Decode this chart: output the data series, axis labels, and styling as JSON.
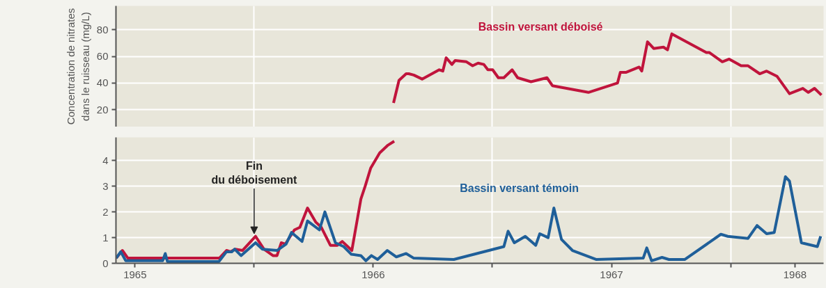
{
  "chart_data": [
    {
      "type": "line",
      "ylabel": "Concentration de nitrates\ndans le ruisseau (mg/L)",
      "xlim": [
        1965.42,
        1968.39
      ],
      "ylim": [
        7,
        98
      ],
      "xticks": [
        {
          "value": 1966,
          "label": null
        },
        {
          "value": 1967,
          "label": null
        },
        {
          "value": 1968,
          "label": null
        }
      ],
      "yticks": [
        20,
        40,
        60,
        80
      ],
      "grid": true,
      "tick_labels": "y",
      "series": [
        {
          "name": "Bassin versant déboisé",
          "color": "#c0143c",
          "x": [
            1966.585,
            1966.608,
            1966.638,
            1966.649,
            1966.67,
            1966.705,
            1966.777,
            1966.792,
            1966.806,
            1966.83,
            1966.844,
            1966.891,
            1966.917,
            1966.94,
            1966.964,
            1966.981,
            1967.001,
            1967.025,
            1967.048,
            1967.083,
            1967.106,
            1967.162,
            1967.229,
            1967.252,
            1967.403,
            1967.525,
            1967.537,
            1967.56,
            1967.616,
            1967.627,
            1967.651,
            1967.677,
            1967.718,
            1967.735,
            1967.753,
            1967.898,
            1967.91,
            1967.965,
            1967.994,
            1968.044,
            1968.073,
            1968.122,
            1968.151,
            1968.195,
            1968.247,
            1968.303,
            1968.326,
            1968.352,
            1968.381
          ],
          "values": [
            25,
            42,
            47,
            47,
            46,
            43,
            50,
            49,
            59,
            54,
            57,
            56,
            53,
            55,
            54,
            50,
            50,
            44,
            44,
            50,
            44,
            41,
            44,
            38,
            33,
            40,
            48,
            48,
            52,
            49,
            71,
            66,
            67,
            65,
            77,
            63,
            63,
            56,
            58,
            53,
            53,
            47,
            49,
            45,
            32,
            36,
            33,
            36,
            31
          ]
        }
      ]
    },
    {
      "type": "line",
      "xlim": [
        1965.42,
        1968.39
      ],
      "ylim": [
        0,
        4.9
      ],
      "xticks": [
        {
          "value": 1965.5,
          "label": "1965"
        },
        {
          "value": 1966,
          "label": null
        },
        {
          "value": 1966.5,
          "label": "1966"
        },
        {
          "value": 1967,
          "label": null
        },
        {
          "value": 1967.5,
          "label": "1967"
        },
        {
          "value": 1968,
          "label": null
        },
        {
          "value": 1968.27,
          "label": "1968"
        }
      ],
      "yticks": [
        0,
        1,
        2,
        3,
        4
      ],
      "grid": true,
      "annotations": [
        {
          "text": "Fin\ndu déboisement",
          "x": 1966.0,
          "y": 1.05
        }
      ],
      "series": [
        {
          "color": "#c0143c",
          "x": [
            1965.421,
            1965.447,
            1965.47,
            1965.854,
            1965.884,
            1965.901,
            1965.921,
            1965.951,
            1966.006,
            1966.041,
            1966.079,
            1966.096,
            1966.114,
            1966.131,
            1966.169,
            1966.192,
            1966.224,
            1966.259,
            1966.282,
            1966.32,
            1966.349,
            1966.37,
            1966.41,
            1966.448,
            1966.466,
            1966.489,
            1966.527,
            1966.562,
            1966.588
          ],
          "values": [
            0.2,
            0.5,
            0.2,
            0.2,
            0.5,
            0.45,
            0.55,
            0.5,
            1.05,
            0.55,
            0.3,
            0.3,
            0.8,
            0.75,
            1.3,
            1.4,
            2.15,
            1.6,
            1.4,
            0.7,
            0.7,
            0.85,
            0.5,
            2.5,
            3.0,
            3.7,
            4.3,
            4.6,
            4.75
          ]
        },
        {
          "name": "Bassin versant témoin",
          "color": "#1f5f99",
          "x": [
            1965.421,
            1965.44,
            1965.461,
            1965.616,
            1965.627,
            1965.636,
            1965.852,
            1965.884,
            1965.907,
            1965.918,
            1965.945,
            1966.006,
            1966.035,
            1966.096,
            1966.134,
            1966.157,
            1966.201,
            1966.224,
            1966.274,
            1966.297,
            1966.341,
            1966.376,
            1966.408,
            1966.448,
            1966.469,
            1966.492,
            1966.518,
            1966.559,
            1966.597,
            1966.638,
            1966.67,
            1966.838,
            1967.048,
            1967.066,
            1967.092,
            1967.138,
            1967.182,
            1967.199,
            1967.234,
            1967.258,
            1967.29,
            1967.336,
            1967.435,
            1967.633,
            1967.648,
            1967.668,
            1967.712,
            1967.741,
            1967.808,
            1967.959,
            1967.988,
            1968.073,
            1968.111,
            1968.151,
            1968.183,
            1968.23,
            1968.247,
            1968.297,
            1968.364,
            1968.378
          ],
          "values": [
            0.2,
            0.45,
            0.1,
            0.1,
            0.38,
            0.07,
            0.07,
            0.45,
            0.45,
            0.55,
            0.3,
            0.8,
            0.55,
            0.5,
            0.75,
            1.2,
            0.85,
            1.65,
            1.3,
            2.0,
            0.8,
            0.65,
            0.35,
            0.3,
            0.1,
            0.3,
            0.15,
            0.5,
            0.25,
            0.38,
            0.2,
            0.15,
            0.65,
            1.25,
            0.8,
            1.05,
            0.7,
            1.15,
            1.0,
            2.15,
            0.93,
            0.5,
            0.15,
            0.2,
            0.6,
            0.1,
            0.23,
            0.15,
            0.15,
            1.13,
            1.05,
            0.97,
            1.47,
            1.15,
            1.2,
            3.37,
            3.2,
            0.8,
            0.65,
            1.05
          ]
        }
      ]
    }
  ]
}
